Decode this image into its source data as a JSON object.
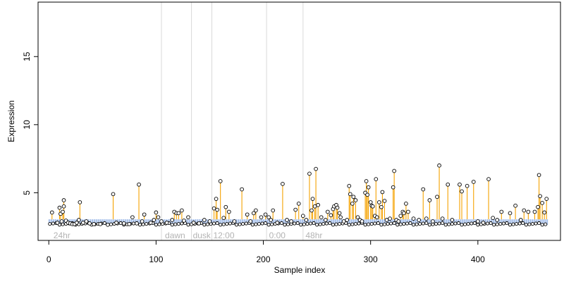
{
  "chart_data": {
    "type": "scatter",
    "title": "",
    "xlabel": "Sample index",
    "ylabel": "Expression",
    "xlim": [
      -10,
      477
    ],
    "ylim": [
      1.5,
      19.0
    ],
    "x_ticks": [
      0,
      100,
      200,
      300,
      400
    ],
    "y_ticks": [
      5,
      10,
      15
    ],
    "grid": false,
    "baseline": 2.65,
    "threshold": 3.05,
    "colors": {
      "stem": "#f5a200",
      "baseline_band": "#7ea3e0",
      "marker_edge": "#000000",
      "divider": "#d9d9d9",
      "annotation": "#b3b3b3",
      "axis": "#000000"
    },
    "dividers": [
      105,
      133,
      152,
      203,
      237
    ],
    "annotations": [
      {
        "label": "24hr",
        "x": 3
      },
      {
        "label": "dawn",
        "x": 107
      },
      {
        "label": "dusk",
        "x": 133
      },
      {
        "label": "12:00",
        "x": 152
      },
      {
        "label": "0:00",
        "x": 204
      },
      {
        "label": "48hr",
        "x": 238
      }
    ],
    "points": [
      [
        3,
        3.55
      ],
      [
        8,
        2.8
      ],
      [
        10,
        3.9
      ],
      [
        11,
        3.45
      ],
      [
        12,
        2.9
      ],
      [
        13,
        3.6
      ],
      [
        14,
        4.0
      ],
      [
        14,
        4.45
      ],
      [
        16,
        2.95
      ],
      [
        18,
        2.8
      ],
      [
        20,
        2.75
      ],
      [
        22,
        2.7
      ],
      [
        24,
        2.7
      ],
      [
        26,
        2.8
      ],
      [
        28,
        3.0
      ],
      [
        29,
        4.3
      ],
      [
        32,
        2.8
      ],
      [
        35,
        2.9
      ],
      [
        38,
        2.75
      ],
      [
        42,
        2.7
      ],
      [
        48,
        2.7
      ],
      [
        55,
        2.65
      ],
      [
        60,
        4.9
      ],
      [
        63,
        2.8
      ],
      [
        70,
        2.75
      ],
      [
        75,
        2.7
      ],
      [
        78,
        3.2
      ],
      [
        82,
        2.75
      ],
      [
        84,
        5.6
      ],
      [
        87,
        2.9
      ],
      [
        89,
        3.4
      ],
      [
        95,
        2.8
      ],
      [
        98,
        3.0
      ],
      [
        100,
        3.55
      ],
      [
        102,
        3.2
      ],
      [
        105,
        2.9
      ],
      [
        110,
        2.8
      ],
      [
        115,
        3.0
      ],
      [
        117,
        3.6
      ],
      [
        119,
        3.5
      ],
      [
        121,
        3.5
      ],
      [
        124,
        3.7
      ],
      [
        126,
        2.95
      ],
      [
        130,
        3.2
      ],
      [
        135,
        2.8
      ],
      [
        140,
        2.75
      ],
      [
        145,
        3.0
      ],
      [
        150,
        2.9
      ],
      [
        154,
        3.85
      ],
      [
        156,
        4.55
      ],
      [
        157,
        3.75
      ],
      [
        160,
        5.85
      ],
      [
        163,
        3.15
      ],
      [
        165,
        3.95
      ],
      [
        168,
        3.6
      ],
      [
        173,
        2.9
      ],
      [
        180,
        5.25
      ],
      [
        185,
        3.4
      ],
      [
        188,
        2.9
      ],
      [
        191,
        3.5
      ],
      [
        193,
        3.7
      ],
      [
        198,
        3.2
      ],
      [
        202,
        3.4
      ],
      [
        205,
        3.2
      ],
      [
        207,
        3.0
      ],
      [
        209,
        3.7
      ],
      [
        213,
        2.8
      ],
      [
        218,
        5.65
      ],
      [
        222,
        3.0
      ],
      [
        226,
        2.9
      ],
      [
        230,
        3.75
      ],
      [
        233,
        4.2
      ],
      [
        237,
        3.3
      ],
      [
        240,
        3.0
      ],
      [
        243,
        6.4
      ],
      [
        245,
        3.7
      ],
      [
        246,
        4.55
      ],
      [
        248,
        4.0
      ],
      [
        249,
        6.75
      ],
      [
        251,
        4.1
      ],
      [
        254,
        3.2
      ],
      [
        258,
        3.0
      ],
      [
        260,
        3.6
      ],
      [
        263,
        3.35
      ],
      [
        265,
        3.8
      ],
      [
        266,
        4.0
      ],
      [
        268,
        4.1
      ],
      [
        269,
        3.9
      ],
      [
        271,
        3.5
      ],
      [
        272,
        3.2
      ],
      [
        275,
        2.9
      ],
      [
        278,
        3.0
      ],
      [
        280,
        5.5
      ],
      [
        281,
        4.9
      ],
      [
        283,
        4.2
      ],
      [
        284,
        4.7
      ],
      [
        286,
        4.45
      ],
      [
        288,
        3.2
      ],
      [
        290,
        3.0
      ],
      [
        292,
        2.9
      ],
      [
        295,
        5.0
      ],
      [
        296,
        5.85
      ],
      [
        297,
        4.85
      ],
      [
        298,
        5.4
      ],
      [
        300,
        4.3
      ],
      [
        301,
        4.05
      ],
      [
        302,
        4.0
      ],
      [
        304,
        3.3
      ],
      [
        305,
        6.0
      ],
      [
        306,
        3.2
      ],
      [
        308,
        4.3
      ],
      [
        310,
        3.95
      ],
      [
        311,
        5.05
      ],
      [
        313,
        4.4
      ],
      [
        315,
        3.0
      ],
      [
        318,
        3.1
      ],
      [
        321,
        5.4
      ],
      [
        322,
        6.6
      ],
      [
        324,
        3.0
      ],
      [
        326,
        2.9
      ],
      [
        328,
        3.3
      ],
      [
        330,
        3.6
      ],
      [
        331,
        3.5
      ],
      [
        333,
        4.2
      ],
      [
        335,
        3.6
      ],
      [
        340,
        3.1
      ],
      [
        345,
        3.0
      ],
      [
        349,
        5.25
      ],
      [
        352,
        3.1
      ],
      [
        355,
        4.45
      ],
      [
        358,
        2.9
      ],
      [
        362,
        4.7
      ],
      [
        364,
        7.0
      ],
      [
        367,
        3.1
      ],
      [
        372,
        5.6
      ],
      [
        376,
        3.0
      ],
      [
        383,
        5.6
      ],
      [
        385,
        5.1
      ],
      [
        390,
        5.5
      ],
      [
        396,
        5.8
      ],
      [
        400,
        2.9
      ],
      [
        405,
        2.8
      ],
      [
        410,
        6.0
      ],
      [
        414,
        3.15
      ],
      [
        418,
        3.0
      ],
      [
        422,
        3.6
      ],
      [
        430,
        3.5
      ],
      [
        435,
        4.05
      ],
      [
        440,
        3.0
      ],
      [
        443,
        3.7
      ],
      [
        447,
        3.6
      ],
      [
        453,
        3.6
      ],
      [
        456,
        3.95
      ],
      [
        457,
        6.3
      ],
      [
        458,
        4.75
      ],
      [
        460,
        4.25
      ],
      [
        462,
        3.55
      ],
      [
        464,
        4.55
      ]
    ]
  }
}
